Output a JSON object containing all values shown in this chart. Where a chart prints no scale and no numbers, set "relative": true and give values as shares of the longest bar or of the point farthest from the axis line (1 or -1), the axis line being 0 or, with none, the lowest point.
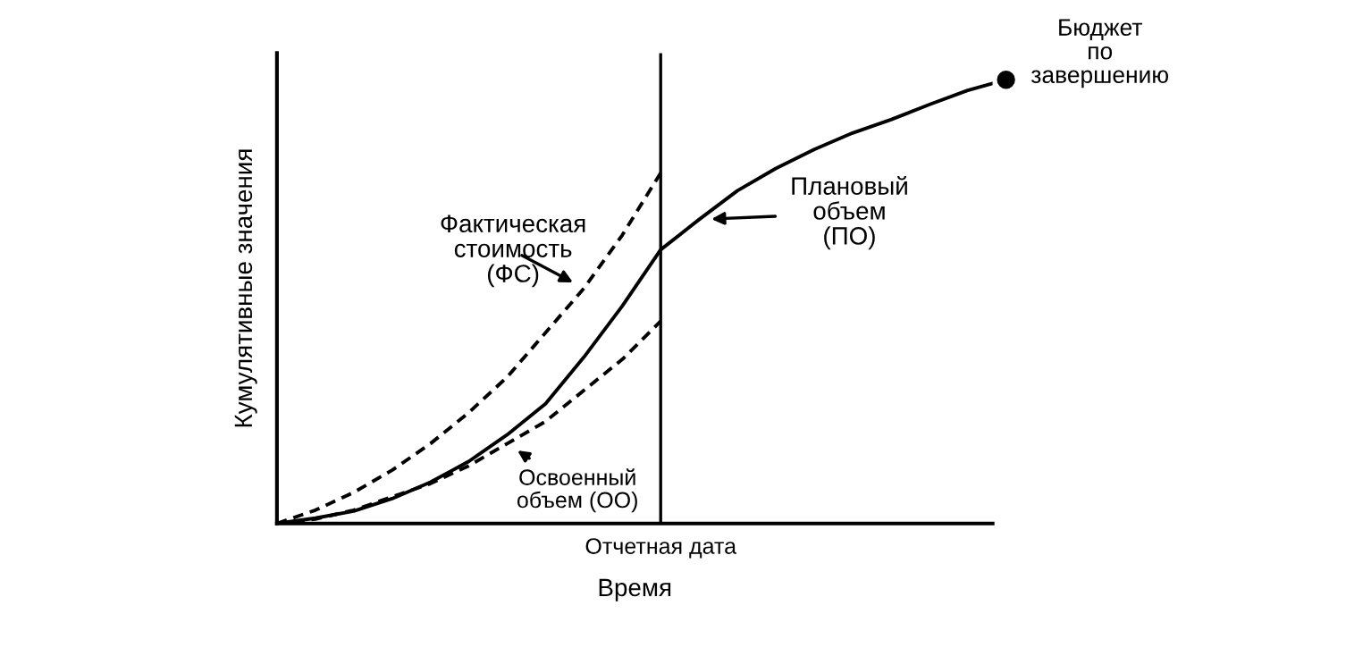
{
  "chart_data": {
    "type": "line",
    "relative": true,
    "xlabel": "Время",
    "ylabel": "Кумулятивные значения",
    "categories": [
      null,
      null,
      null,
      null,
      null,
      null,
      null,
      null,
      null,
      null,
      null,
      null,
      null,
      null,
      null,
      null,
      null,
      null,
      null,
      null
    ],
    "series": [
      {
        "name": "Плановый объем (ПО)",
        "color": "#000000",
        "line_style": "solid",
        "values": [
          0,
          0.012,
          0.028,
          0.056,
          0.093,
          0.14,
          0.2,
          0.27,
          0.375,
          0.49,
          0.617,
          0.685,
          0.75,
          0.8,
          0.843,
          0.88,
          0.91,
          0.944,
          0.976,
          1
        ]
      },
      {
        "name": "Фактическая стоимость (ФС)",
        "color": "#000000",
        "line_style": "dashed",
        "values": [
          0,
          0.03,
          0.07,
          0.12,
          0.18,
          0.25,
          0.33,
          0.43,
          0.53,
          0.65,
          0.79,
          null,
          null,
          null,
          null,
          null,
          null,
          null,
          null,
          null
        ]
      },
      {
        "name": "Освоенный объем (ОО)",
        "color": "#000000",
        "line_style": "dashed",
        "values": [
          0,
          0.01,
          0.03,
          0.06,
          0.09,
          0.13,
          0.18,
          0.23,
          0.3,
          0.37,
          0.456,
          null,
          null,
          null,
          null,
          null,
          null,
          null,
          null,
          null
        ]
      }
    ],
    "annotations": [
      "Бюджет по завершению",
      "Отчетная дата"
    ]
  }
}
